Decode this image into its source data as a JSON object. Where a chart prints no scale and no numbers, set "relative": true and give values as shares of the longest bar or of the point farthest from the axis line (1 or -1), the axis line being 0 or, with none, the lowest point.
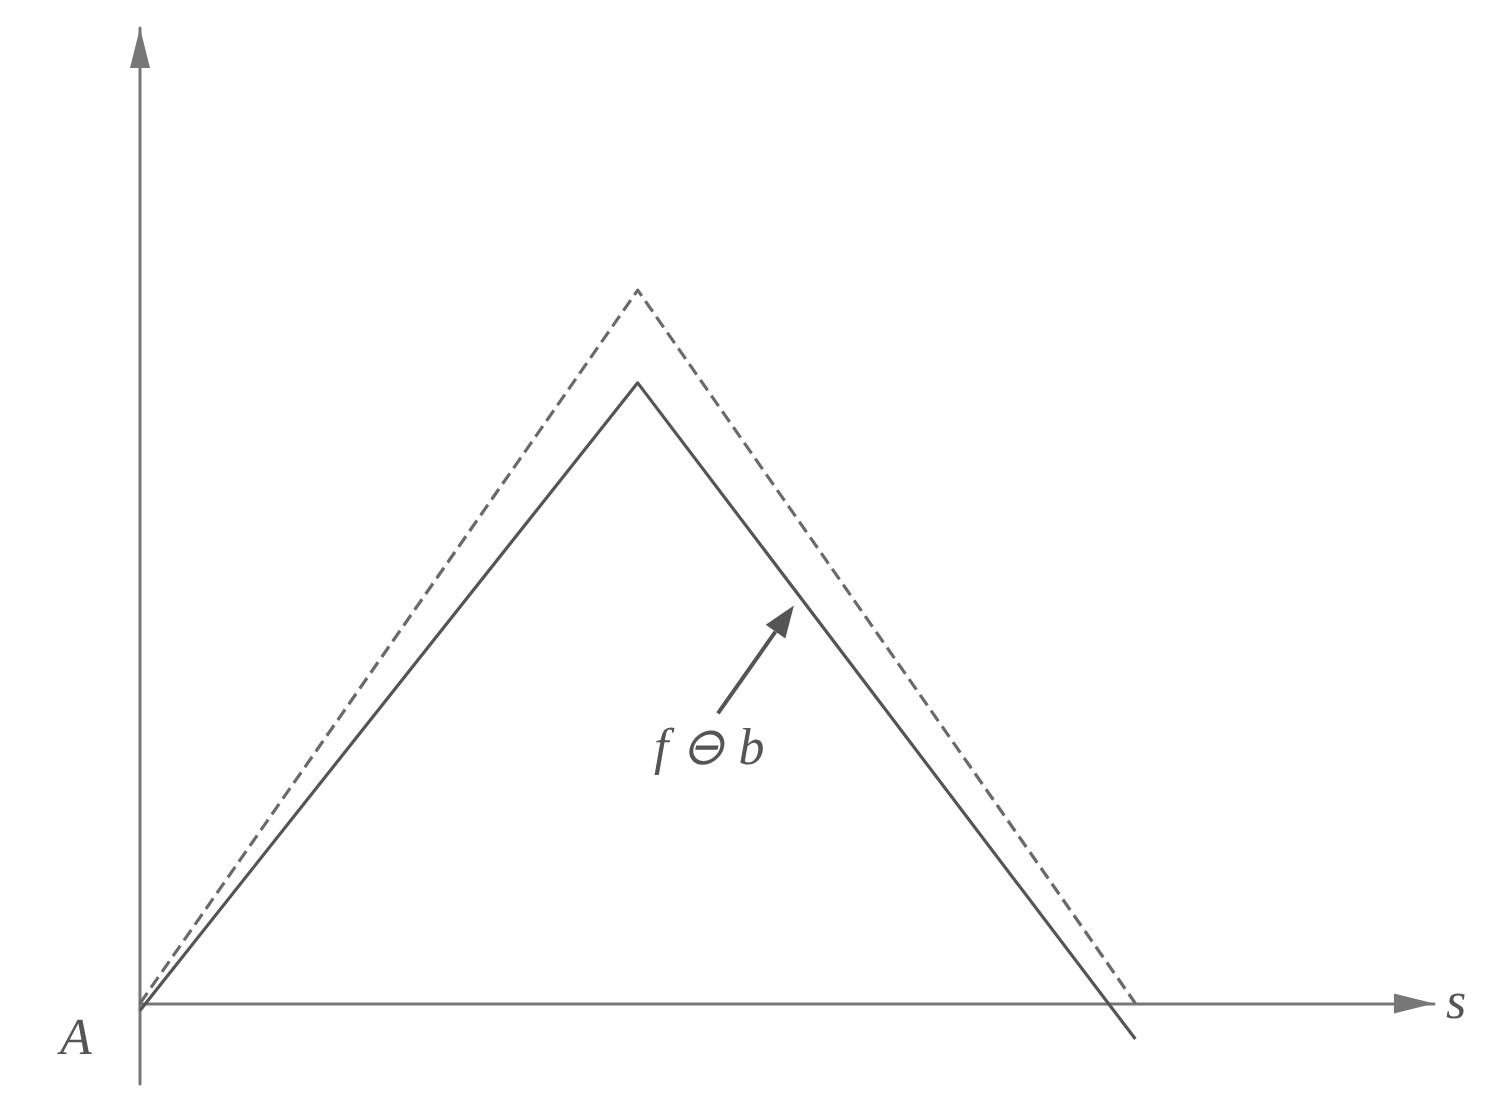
{
  "chart_data": {
    "type": "line",
    "relative": true,
    "categories": [
      null,
      null,
      null
    ],
    "series": [
      {
        "color": "#6a6a6a",
        "line_style": "dashed",
        "values": [
          0,
          1,
          0
        ]
      },
      {
        "color": "#555555",
        "line_style": "solid",
        "values": [
          -0.01,
          0.87,
          -0.05
        ]
      }
    ],
    "annotations": [
      "A",
      "s",
      "f ⊖ b"
    ],
    "marker": "none",
    "grid": false,
    "tick_labels": false
  }
}
